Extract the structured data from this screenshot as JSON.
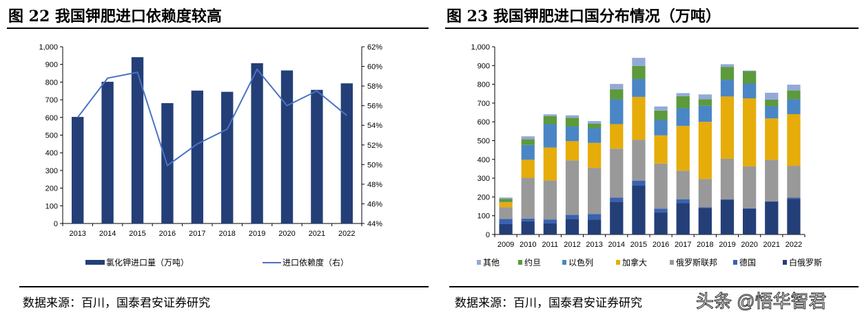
{
  "figures": [
    {
      "title": "图 22 我国钾肥进口依赖度较高",
      "source": "数据来源：百川，国泰君安证券研究"
    },
    {
      "title": "图 23 我国钾肥进口国分布情况（万吨）",
      "source": "数据来源：百川，国泰君安证券研究"
    }
  ],
  "watermark": "头条 @悟华智君",
  "chart_data": [
    {
      "type": "bar+line",
      "categories": [
        "2013",
        "2014",
        "2015",
        "2016",
        "2017",
        "2018",
        "2019",
        "2020",
        "2021",
        "2022"
      ],
      "series": [
        {
          "name": "氯化钾进口量（万吨）",
          "type": "bar",
          "axis": "left",
          "color": "#243f77",
          "values": [
            603,
            802,
            941,
            681,
            752,
            745,
            907,
            866,
            756,
            793
          ]
        },
        {
          "name": "进口依赖度（右）",
          "type": "line",
          "axis": "right",
          "color": "#4a72c4",
          "values": [
            54.8,
            58.8,
            59.4,
            49.9,
            52.1,
            53.6,
            59.7,
            56.0,
            57.5,
            55.0
          ]
        }
      ],
      "ylim": [
        0,
        1000
      ],
      "yticks": [
        "0",
        "100",
        "200",
        "300",
        "400",
        "500",
        "600",
        "700",
        "800",
        "900",
        "1,000"
      ],
      "y2lim": [
        44,
        62
      ],
      "y2ticks": [
        "44%",
        "46%",
        "48%",
        "50%",
        "52%",
        "54%",
        "56%",
        "58%",
        "60%",
        "62%"
      ],
      "legend": "bottom",
      "grid": false
    },
    {
      "type": "stacked-bar",
      "categories": [
        "2009",
        "2010",
        "2011",
        "2012",
        "2013",
        "2014",
        "2015",
        "2016",
        "2017",
        "2018",
        "2019",
        "2020",
        "2021",
        "2022"
      ],
      "series": [
        {
          "name": "白俄罗斯",
          "color": "#243f77",
          "values": [
            55,
            70,
            60,
            83,
            80,
            175,
            260,
            117,
            168,
            142,
            186,
            138,
            174,
            190
          ]
        },
        {
          "name": "德国",
          "color": "#3a62b0",
          "values": [
            28,
            15,
            20,
            22,
            28,
            22,
            27,
            21,
            20,
            3,
            2,
            2,
            2,
            6
          ]
        },
        {
          "name": "俄罗斯联邦",
          "color": "#999999",
          "values": [
            62,
            217,
            208,
            290,
            247,
            260,
            218,
            240,
            152,
            151,
            215,
            223,
            222,
            170
          ]
        },
        {
          "name": "加拿大",
          "color": "#e6ac0a",
          "values": [
            27,
            96,
            175,
            102,
            133,
            131,
            228,
            150,
            238,
            304,
            332,
            362,
            220,
            275
          ]
        },
        {
          "name": "以色列",
          "color": "#4a86c5",
          "values": [
            3,
            79,
            125,
            78,
            78,
            132,
            95,
            82,
            94,
            86,
            89,
            79,
            65,
            79
          ]
        },
        {
          "name": "约旦",
          "color": "#5c9a3c",
          "values": [
            15,
            31,
            42,
            47,
            24,
            53,
            70,
            50,
            65,
            34,
            68,
            66,
            35,
            47
          ]
        },
        {
          "name": "其他",
          "color": "#93a9d9",
          "values": [
            7,
            15,
            10,
            13,
            14,
            29,
            43,
            22,
            16,
            26,
            15,
            3,
            37,
            31
          ]
        }
      ],
      "legend_order": [
        "其他",
        "约旦",
        "以色列",
        "加拿大",
        "俄罗斯联邦",
        "德国",
        "白俄罗斯"
      ],
      "ylim": [
        0,
        1000
      ],
      "yticks": [
        "0",
        "100",
        "200",
        "300",
        "400",
        "500",
        "600",
        "700",
        "800",
        "900",
        "1,000"
      ],
      "legend": "bottom",
      "grid": false
    }
  ]
}
